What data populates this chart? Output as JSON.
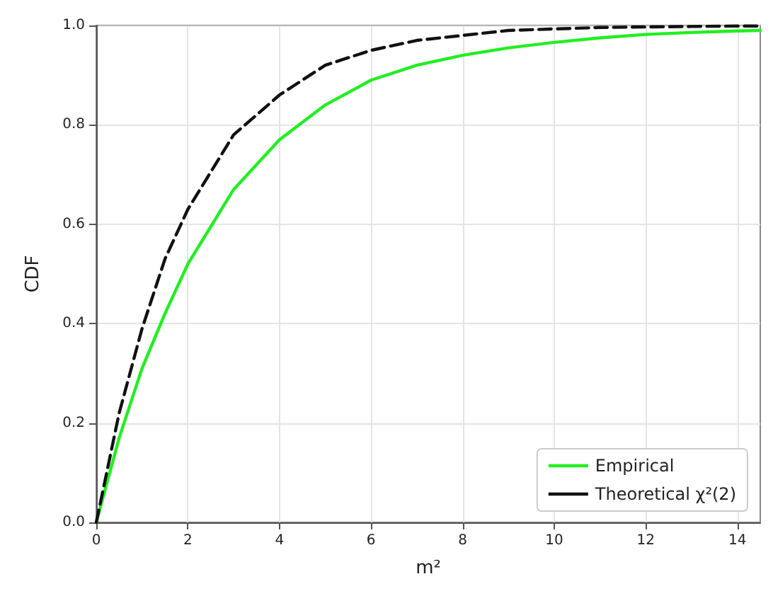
{
  "chart_data": {
    "type": "line",
    "xlabel": "m²",
    "ylabel": "CDF",
    "x": [
      0,
      0.5,
      1,
      1.5,
      2,
      3,
      4,
      5,
      6,
      7,
      8,
      9,
      10,
      11,
      12,
      13,
      14,
      14.5
    ],
    "series": [
      {
        "name": "Empirical",
        "color": "#22ee22",
        "values": [
          0,
          0.17,
          0.31,
          0.42,
          0.52,
          0.67,
          0.77,
          0.84,
          0.89,
          0.92,
          0.94,
          0.955,
          0.966,
          0.975,
          0.982,
          0.986,
          0.989,
          0.99
        ]
      },
      {
        "name": "Theoretical χ²(2)",
        "color": "#111111",
        "line_style": "dashed",
        "values": [
          0,
          0.22,
          0.39,
          0.53,
          0.63,
          0.78,
          0.86,
          0.92,
          0.95,
          0.97,
          0.98,
          0.99,
          0.993,
          0.996,
          0.997,
          0.998,
          0.999,
          0.999
        ]
      }
    ],
    "xlim": [
      0,
      14.5
    ],
    "xticks": [
      0,
      2,
      4,
      6,
      8,
      10,
      12,
      14
    ],
    "ylim": [
      0,
      1
    ],
    "yticks": [
      {
        "value": 0,
        "label": "0.0"
      },
      {
        "value": 0.2,
        "label": "0.2"
      },
      {
        "value": 0.4,
        "label": "0.4"
      },
      {
        "value": 0.6,
        "label": "0.6"
      },
      {
        "value": 0.8,
        "label": "0.8"
      },
      {
        "value": 1,
        "label": "1.0"
      }
    ],
    "grid": true,
    "legend": "bottom right",
    "marker": "none",
    "line_style": "solid"
  }
}
